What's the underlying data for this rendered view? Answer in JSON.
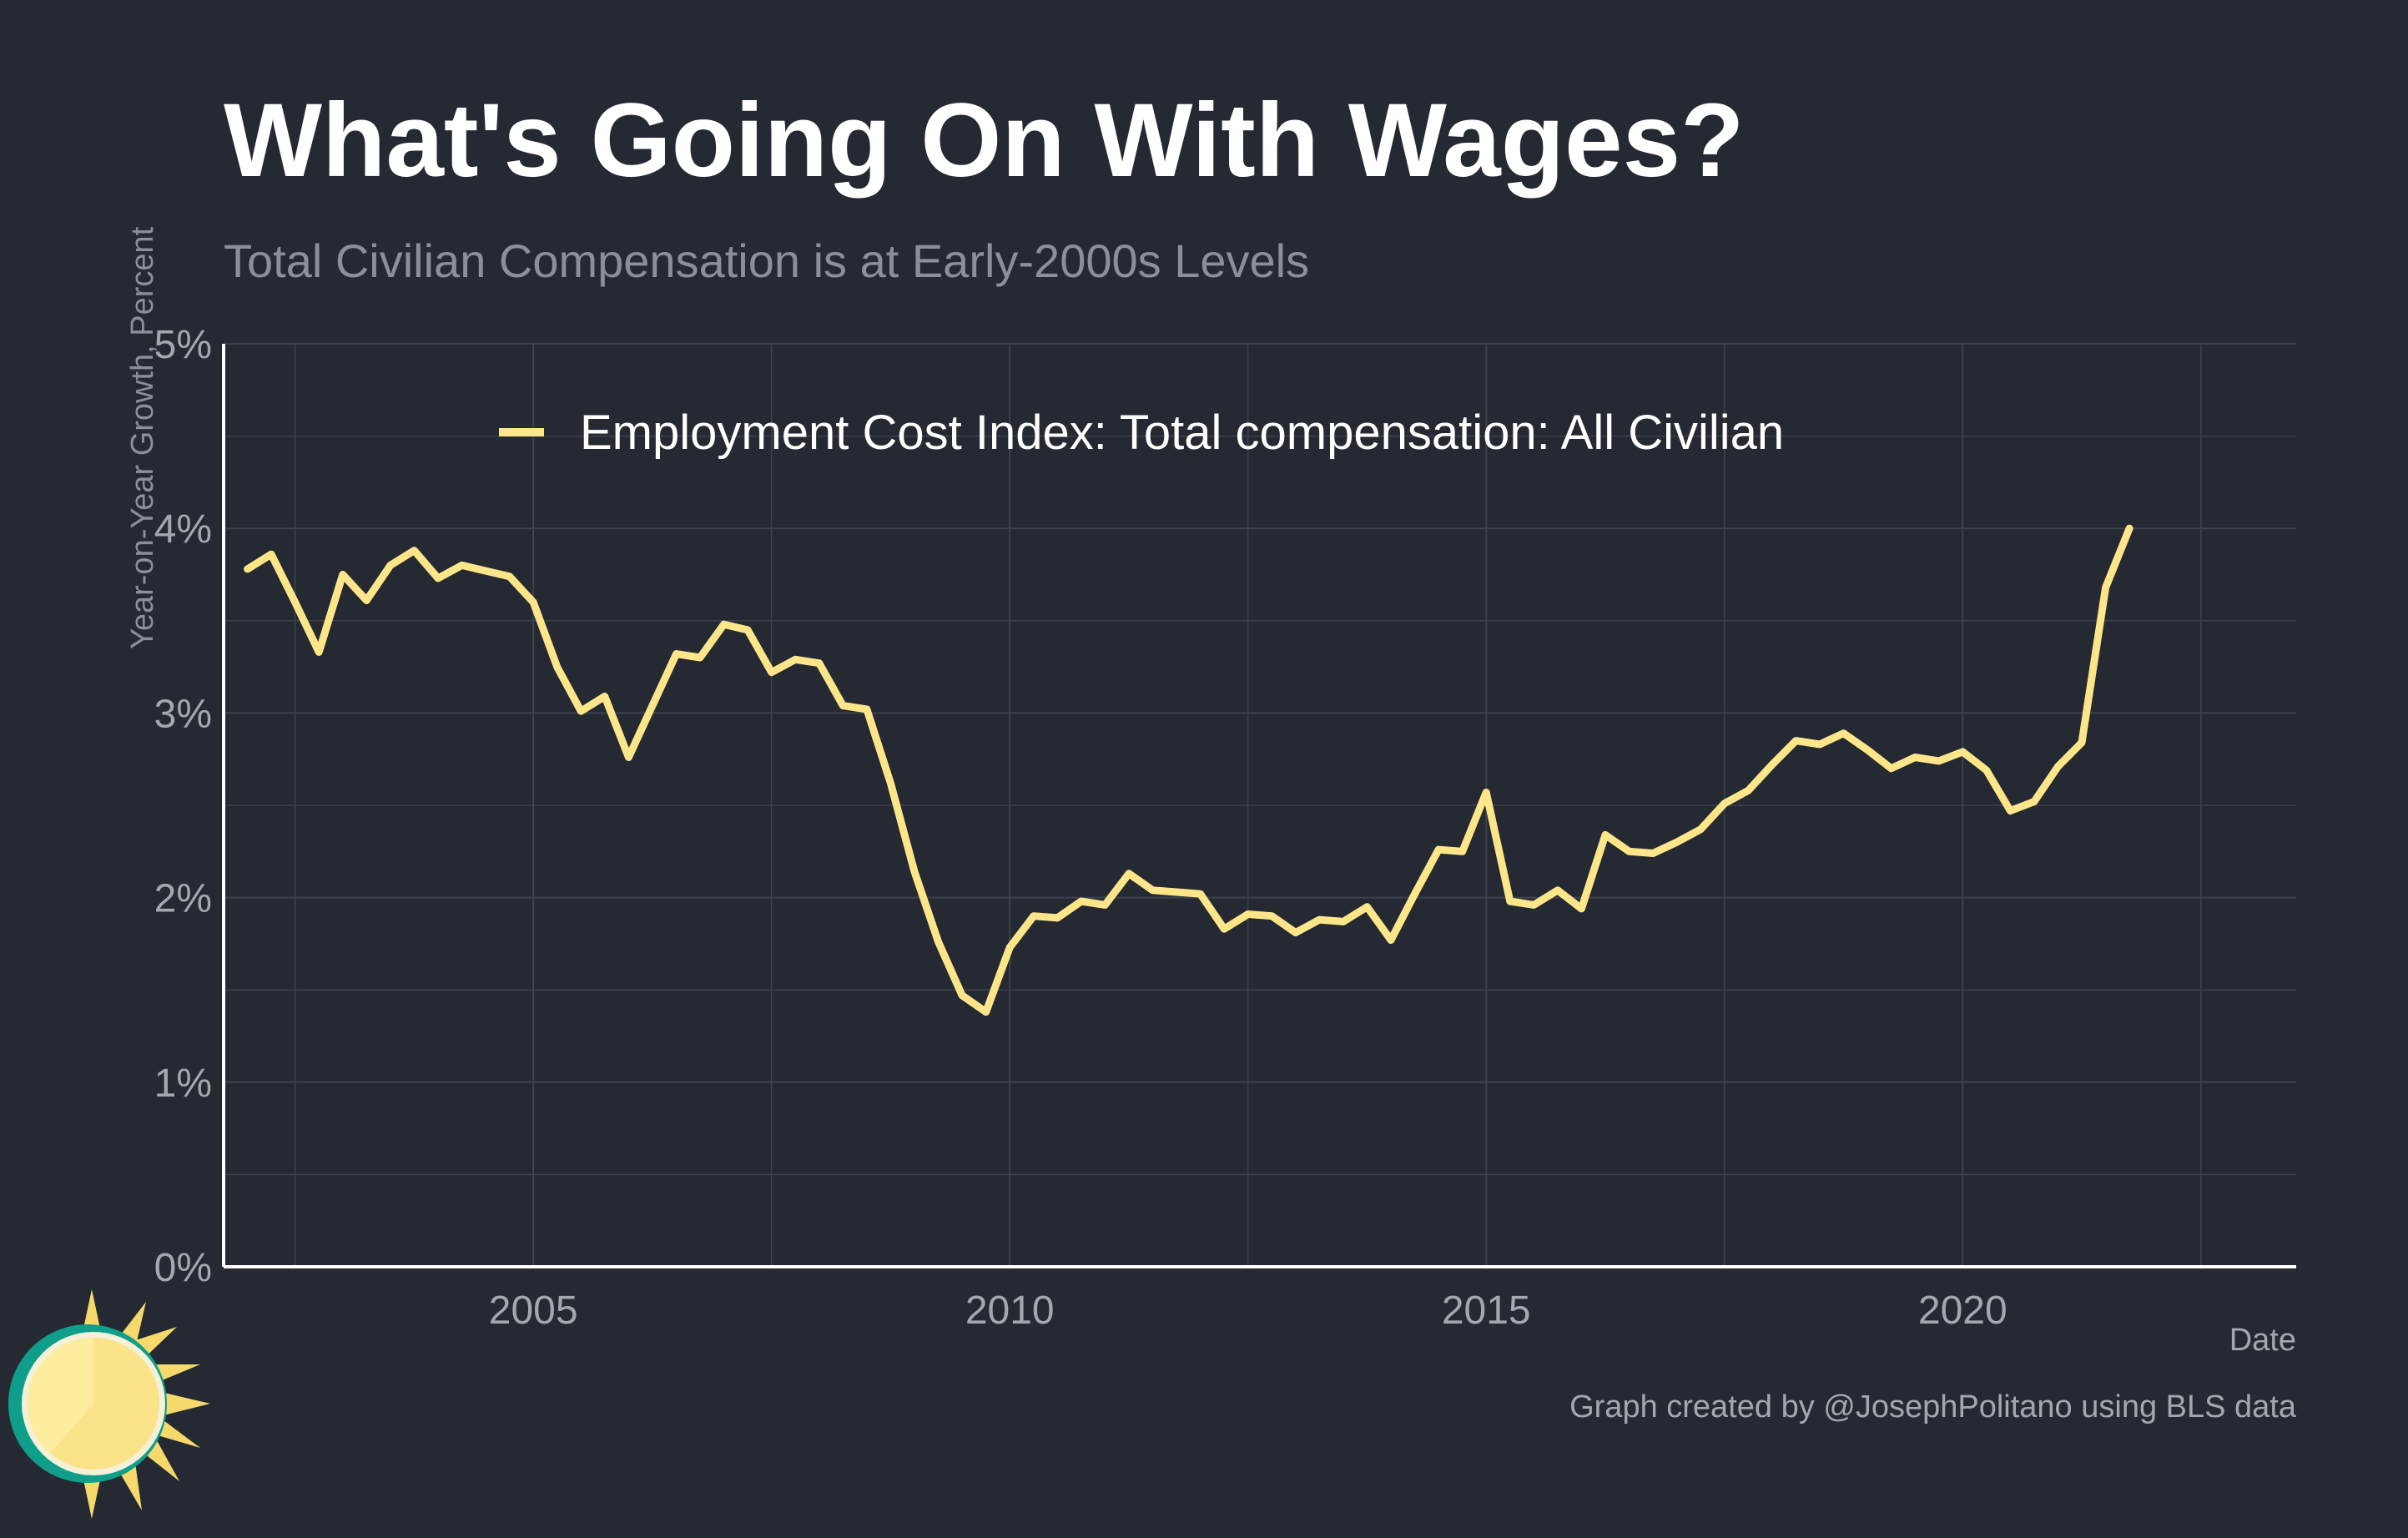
{
  "title": "What's Going On With Wages?",
  "subtitle": "Total Civilian Compensation is at Early-2000s Levels",
  "caption": "Graph created by @JosephPolitano using BLS data",
  "colors": {
    "background": "#252932",
    "line": "#fde68a",
    "grid": "#3d424c",
    "text": "#a3a7ae"
  },
  "chart_data": {
    "type": "line",
    "xlabel": "Date",
    "ylabel": "Year-on-Year Growth, Percent",
    "xlim": [
      2001.75,
      2023.5
    ],
    "ylim": [
      0,
      5
    ],
    "x_ticks": [
      2005,
      2010,
      2015,
      2020
    ],
    "x_tick_labels": [
      "2005",
      "2010",
      "2015",
      "2020"
    ],
    "y_ticks": [
      0,
      1,
      2,
      3,
      4,
      5
    ],
    "y_tick_labels": [
      "0%",
      "1%",
      "2%",
      "3%",
      "4%",
      "5%"
    ],
    "grid": true,
    "legend_position": "top-left",
    "series": [
      {
        "name": "Employment Cost Index: Total compensation: All Civilian",
        "color": "#fde68a",
        "x": [
          2002.0,
          2002.25,
          2002.5,
          2002.75,
          2003.0,
          2003.25,
          2003.5,
          2003.75,
          2004.0,
          2004.25,
          2004.5,
          2004.75,
          2005.0,
          2005.25,
          2005.5,
          2005.75,
          2006.0,
          2006.25,
          2006.5,
          2006.75,
          2007.0,
          2007.25,
          2007.5,
          2007.75,
          2008.0,
          2008.25,
          2008.5,
          2008.75,
          2009.0,
          2009.25,
          2009.5,
          2009.75,
          2010.0,
          2010.25,
          2010.5,
          2010.75,
          2011.0,
          2011.25,
          2011.5,
          2011.75,
          2012.0,
          2012.25,
          2012.5,
          2012.75,
          2013.0,
          2013.25,
          2013.5,
          2013.75,
          2014.0,
          2014.25,
          2014.5,
          2014.75,
          2015.0,
          2015.25,
          2015.5,
          2015.75,
          2016.0,
          2016.25,
          2016.5,
          2016.75,
          2017.0,
          2017.25,
          2017.5,
          2017.75,
          2018.0,
          2018.25,
          2018.5,
          2018.75,
          2019.0,
          2019.25,
          2019.5,
          2019.75,
          2020.0,
          2020.25,
          2020.5,
          2020.75,
          2021.0,
          2021.25,
          2021.5,
          2021.75
        ],
        "values": [
          3.78,
          3.86,
          3.6,
          3.33,
          3.75,
          3.61,
          3.8,
          3.88,
          3.73,
          3.8,
          3.77,
          3.74,
          3.6,
          3.25,
          3.01,
          3.09,
          2.76,
          3.04,
          3.32,
          3.3,
          3.48,
          3.45,
          3.22,
          3.29,
          3.27,
          3.04,
          3.02,
          2.62,
          2.14,
          1.76,
          1.47,
          1.38,
          1.73,
          1.9,
          1.89,
          1.98,
          1.96,
          2.13,
          2.04,
          2.03,
          2.02,
          1.83,
          1.91,
          1.9,
          1.81,
          1.88,
          1.87,
          1.95,
          1.77,
          2.02,
          2.26,
          2.25,
          2.57,
          1.98,
          1.96,
          2.04,
          1.94,
          2.34,
          2.25,
          2.24,
          2.3,
          2.37,
          2.51,
          2.58,
          2.72,
          2.85,
          2.83,
          2.89,
          2.8,
          2.7,
          2.76,
          2.74,
          2.79,
          2.69,
          2.47,
          2.52,
          2.71,
          2.84,
          3.68,
          4.0
        ]
      }
    ]
  }
}
